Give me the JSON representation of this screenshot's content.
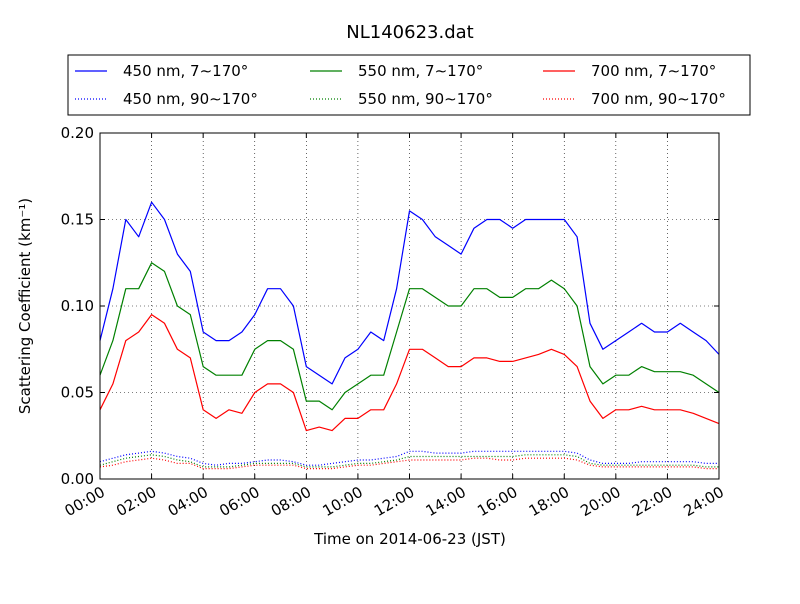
{
  "chart_data": {
    "type": "line",
    "title": "NL140623.dat",
    "xlabel": "Time on 2014-06-23 (JST)",
    "ylabel": "Scattering Coefficient (km⁻¹)",
    "xlim": [
      0,
      24
    ],
    "ylim": [
      0,
      0.2
    ],
    "grid": true,
    "legend_position": "top",
    "x_tick_labels": [
      "00:00",
      "02:00",
      "04:00",
      "06:00",
      "08:00",
      "10:00",
      "12:00",
      "14:00",
      "16:00",
      "18:00",
      "20:00",
      "22:00",
      "24:00"
    ],
    "x_ticks": [
      0,
      2,
      4,
      6,
      8,
      10,
      12,
      14,
      16,
      18,
      20,
      22,
      24
    ],
    "y_tick_labels": [
      "0.00",
      "0.05",
      "0.10",
      "0.15",
      "0.20"
    ],
    "y_ticks": [
      0,
      0.05,
      0.1,
      0.15,
      0.2
    ],
    "x": [
      0,
      0.5,
      1,
      1.5,
      2,
      2.5,
      3,
      3.5,
      4,
      4.5,
      5,
      5.5,
      6,
      6.5,
      7,
      7.5,
      8,
      8.5,
      9,
      9.5,
      10,
      10.5,
      11,
      11.5,
      12,
      12.5,
      13,
      13.5,
      14,
      14.5,
      15,
      15.5,
      16,
      16.5,
      17,
      17.5,
      18,
      18.5,
      19,
      19.5,
      20,
      20.5,
      21,
      21.5,
      22,
      22.5,
      23,
      23.5,
      24
    ],
    "series": [
      {
        "name": "450 nm, 7∼170°",
        "color": "#0000ff",
        "style": "solid",
        "values": [
          0.08,
          0.11,
          0.15,
          0.14,
          0.16,
          0.15,
          0.13,
          0.12,
          0.085,
          0.08,
          0.08,
          0.085,
          0.095,
          0.11,
          0.11,
          0.1,
          0.065,
          0.06,
          0.055,
          0.07,
          0.075,
          0.085,
          0.08,
          0.11,
          0.155,
          0.15,
          0.14,
          0.135,
          0.13,
          0.145,
          0.15,
          0.15,
          0.145,
          0.15,
          0.15,
          0.15,
          0.15,
          0.14,
          0.09,
          0.075,
          0.08,
          0.085,
          0.09,
          0.085,
          0.085,
          0.09,
          0.085,
          0.08,
          0.072
        ]
      },
      {
        "name": "550 nm, 7∼170°",
        "color": "#008000",
        "style": "solid",
        "values": [
          0.06,
          0.08,
          0.11,
          0.11,
          0.125,
          0.12,
          0.1,
          0.095,
          0.065,
          0.06,
          0.06,
          0.06,
          0.075,
          0.08,
          0.08,
          0.075,
          0.045,
          0.045,
          0.04,
          0.05,
          0.055,
          0.06,
          0.06,
          0.085,
          0.11,
          0.11,
          0.105,
          0.1,
          0.1,
          0.11,
          0.11,
          0.105,
          0.105,
          0.11,
          0.11,
          0.115,
          0.11,
          0.1,
          0.065,
          0.055,
          0.06,
          0.06,
          0.065,
          0.062,
          0.062,
          0.062,
          0.06,
          0.055,
          0.05
        ]
      },
      {
        "name": "700 nm, 7∼170°",
        "color": "#ff0000",
        "style": "solid",
        "values": [
          0.04,
          0.055,
          0.08,
          0.085,
          0.095,
          0.09,
          0.075,
          0.07,
          0.04,
          0.035,
          0.04,
          0.038,
          0.05,
          0.055,
          0.055,
          0.05,
          0.028,
          0.03,
          0.028,
          0.035,
          0.035,
          0.04,
          0.04,
          0.055,
          0.075,
          0.075,
          0.07,
          0.065,
          0.065,
          0.07,
          0.07,
          0.068,
          0.068,
          0.07,
          0.072,
          0.075,
          0.072,
          0.065,
          0.045,
          0.035,
          0.04,
          0.04,
          0.042,
          0.04,
          0.04,
          0.04,
          0.038,
          0.035,
          0.032
        ]
      },
      {
        "name": "450 nm, 90∼170°",
        "color": "#0000ff",
        "style": "dotted",
        "values": [
          0.01,
          0.012,
          0.014,
          0.015,
          0.016,
          0.015,
          0.013,
          0.012,
          0.009,
          0.008,
          0.009,
          0.009,
          0.01,
          0.011,
          0.011,
          0.01,
          0.008,
          0.008,
          0.009,
          0.01,
          0.011,
          0.011,
          0.012,
          0.013,
          0.016,
          0.016,
          0.015,
          0.015,
          0.015,
          0.016,
          0.016,
          0.016,
          0.016,
          0.016,
          0.016,
          0.016,
          0.016,
          0.015,
          0.011,
          0.009,
          0.009,
          0.009,
          0.01,
          0.01,
          0.01,
          0.01,
          0.01,
          0.009,
          0.009
        ]
      },
      {
        "name": "550 nm, 90∼170°",
        "color": "#008000",
        "style": "dotted",
        "values": [
          0.008,
          0.01,
          0.012,
          0.013,
          0.014,
          0.013,
          0.011,
          0.01,
          0.007,
          0.007,
          0.007,
          0.008,
          0.009,
          0.009,
          0.009,
          0.009,
          0.007,
          0.007,
          0.007,
          0.008,
          0.009,
          0.009,
          0.01,
          0.011,
          0.013,
          0.013,
          0.013,
          0.013,
          0.013,
          0.013,
          0.013,
          0.013,
          0.013,
          0.014,
          0.014,
          0.014,
          0.014,
          0.013,
          0.009,
          0.008,
          0.008,
          0.008,
          0.008,
          0.008,
          0.008,
          0.008,
          0.008,
          0.007,
          0.007
        ]
      },
      {
        "name": "700 nm, 90∼170°",
        "color": "#ff0000",
        "style": "dotted",
        "values": [
          0.007,
          0.008,
          0.01,
          0.011,
          0.012,
          0.011,
          0.009,
          0.009,
          0.006,
          0.006,
          0.006,
          0.007,
          0.008,
          0.008,
          0.008,
          0.008,
          0.006,
          0.006,
          0.006,
          0.007,
          0.008,
          0.008,
          0.009,
          0.01,
          0.011,
          0.011,
          0.011,
          0.011,
          0.011,
          0.012,
          0.012,
          0.011,
          0.011,
          0.012,
          0.012,
          0.012,
          0.012,
          0.011,
          0.008,
          0.007,
          0.007,
          0.007,
          0.007,
          0.007,
          0.007,
          0.007,
          0.007,
          0.006,
          0.006
        ]
      }
    ]
  }
}
